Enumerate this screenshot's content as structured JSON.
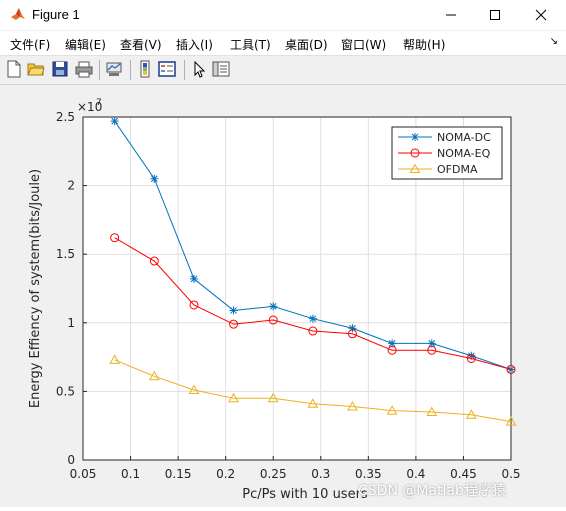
{
  "window": {
    "title": "Figure 1",
    "controls": [
      "minimize",
      "maximize",
      "close"
    ]
  },
  "menu": {
    "items": [
      "文件(F)",
      "编辑(E)",
      "查看(V)",
      "插入(I)",
      "工具(T)",
      "桌面(D)",
      "窗口(W)",
      "帮助(H)"
    ],
    "dock_arrow": "↘"
  },
  "toolbar": {
    "icons": [
      "new-figure-icon",
      "open-file-icon",
      "save-icon",
      "print-icon",
      "link-plot-icon",
      "colorbar-icon",
      "legend-icon",
      "pointer-icon",
      "property-inspector-icon"
    ]
  },
  "watermark": "CSDN @Matlab程序猿",
  "colors": {
    "noma_dc": "#0072BD",
    "noma_eq": "#FF0000",
    "ofdma": "#EDB120"
  },
  "chart_data": {
    "type": "line",
    "title": "",
    "xlabel": "Pc/Ps with 10 users",
    "ylabel": "Energy Effiency of system(bits/Joule)",
    "y_exponent_label": "×10",
    "y_exponent_power": "7",
    "xlim": [
      0.05,
      0.5
    ],
    "ylim": [
      0,
      2.5
    ],
    "xticks": [
      "0.05",
      "0.1",
      "0.15",
      "0.2",
      "0.25",
      "0.3",
      "0.35",
      "0.4",
      "0.45",
      "0.5"
    ],
    "yticks": [
      "0",
      "0.5",
      "1",
      "1.5",
      "2",
      "2.5"
    ],
    "grid": true,
    "legend_position": "top-right",
    "x": [
      0.0833,
      0.125,
      0.1667,
      0.2083,
      0.25,
      0.2917,
      0.3333,
      0.375,
      0.4167,
      0.4583,
      0.5
    ],
    "series": [
      {
        "name": "NOMA-DC",
        "marker": "asterisk",
        "values": [
          2.47,
          2.05,
          1.32,
          1.09,
          1.12,
          1.03,
          0.96,
          0.85,
          0.85,
          0.76,
          0.66
        ]
      },
      {
        "name": "NOMA-EQ",
        "marker": "circle",
        "values": [
          1.62,
          1.45,
          1.13,
          0.99,
          1.02,
          0.94,
          0.92,
          0.8,
          0.8,
          0.74,
          0.66
        ]
      },
      {
        "name": "OFDMA",
        "marker": "triangle",
        "values": [
          0.73,
          0.61,
          0.51,
          0.45,
          0.45,
          0.41,
          0.39,
          0.36,
          0.35,
          0.33,
          0.28
        ]
      }
    ]
  }
}
